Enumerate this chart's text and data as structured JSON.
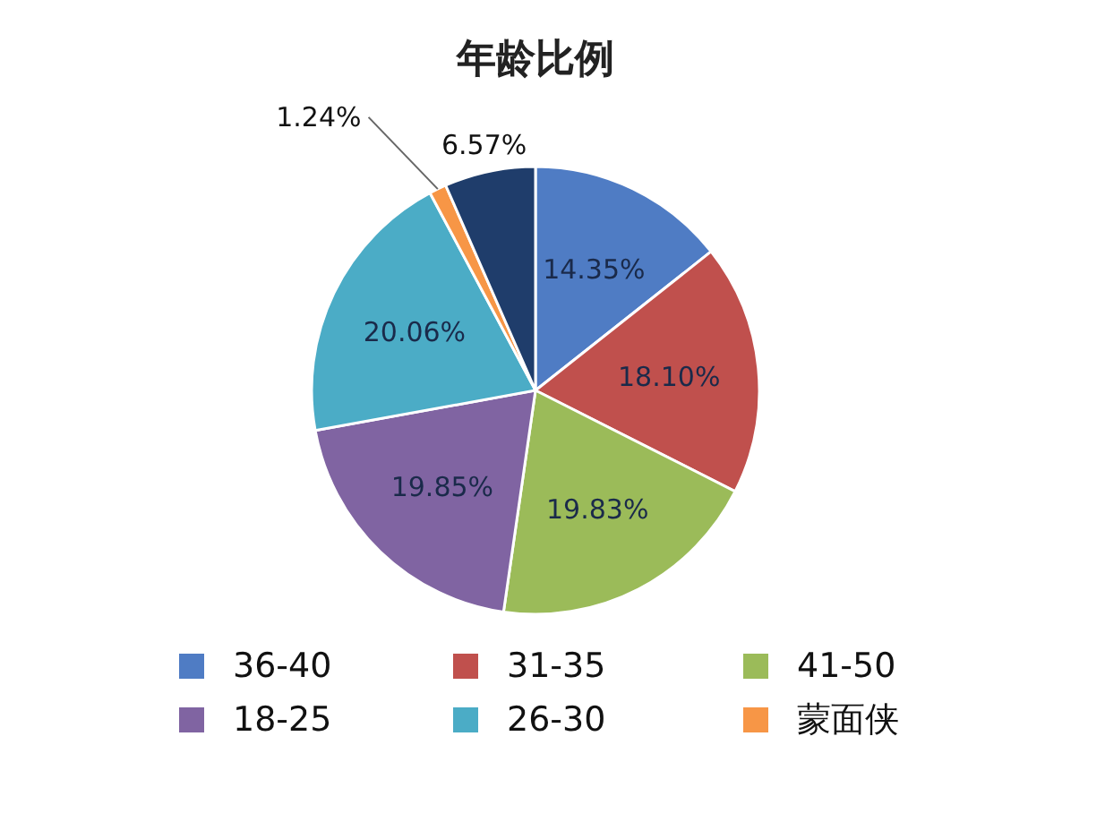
{
  "chart_data": {
    "type": "pie",
    "title": "年龄比例",
    "categories": [
      "36-40",
      "31-35",
      "41-50",
      "18-25",
      "26-30",
      "蒙面侠",
      null
    ],
    "values": [
      14.35,
      18.1,
      19.83,
      19.85,
      20.06,
      1.24,
      6.57
    ],
    "value_labels": [
      "14.35%",
      "18.10%",
      "19.83%",
      "19.85%",
      "20.06%",
      "1.24%",
      "6.57%"
    ],
    "colors": [
      "#4f7cc4",
      "#c0504d",
      "#9bbb59",
      "#8064a2",
      "#4bacc6",
      "#f79646",
      "#1f3d6b"
    ],
    "legend": "bottom"
  }
}
